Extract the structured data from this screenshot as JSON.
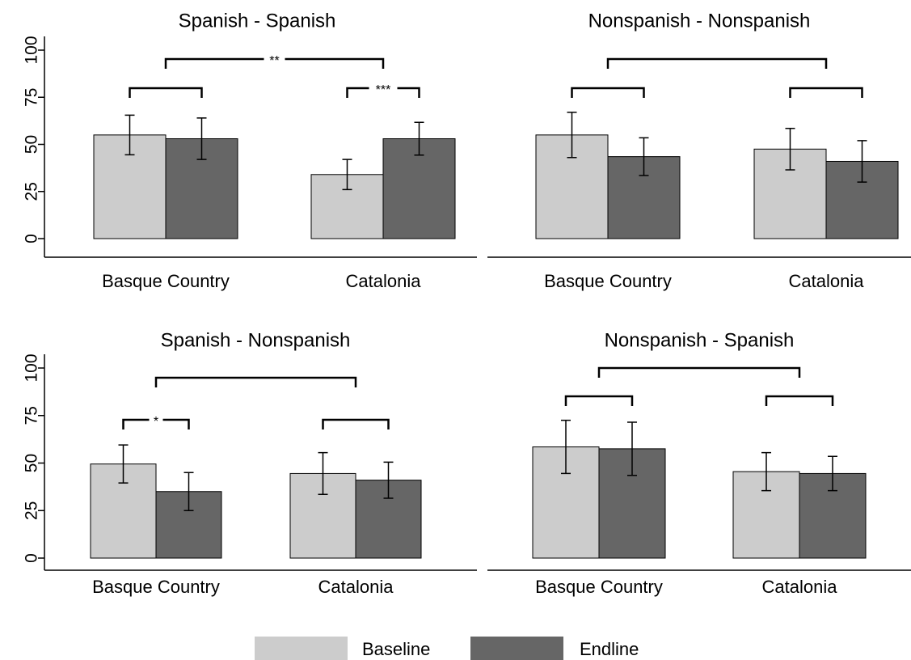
{
  "chart_data": [
    {
      "type": "bar",
      "title": "Spanish - Spanish",
      "categories": [
        "Basque Country",
        "Catalonia"
      ],
      "series": [
        {
          "name": "Baseline",
          "color": "#cccccc",
          "values": [
            55,
            34
          ],
          "errors": [
            10.5,
            8
          ]
        },
        {
          "name": "Endline",
          "color": "#666666",
          "values": [
            53,
            53
          ],
          "errors": [
            11,
            8.7
          ]
        }
      ],
      "ylim": [
        0,
        100
      ],
      "yticks": [
        0,
        25,
        50,
        75,
        100
      ],
      "significance": {
        "between": "**",
        "within": [
          null,
          "***"
        ]
      }
    },
    {
      "type": "bar",
      "title": "Nonspanish - Nonspanish",
      "categories": [
        "Basque Country",
        "Catalonia"
      ],
      "series": [
        {
          "name": "Baseline",
          "color": "#cccccc",
          "values": [
            55,
            47.5
          ],
          "errors": [
            12,
            11
          ]
        },
        {
          "name": "Endline",
          "color": "#666666",
          "values": [
            43.5,
            41
          ],
          "errors": [
            10,
            11
          ]
        }
      ],
      "ylim": [
        0,
        100
      ],
      "significance": {
        "between": null,
        "within": [
          null,
          null
        ]
      }
    },
    {
      "type": "bar",
      "title": "Spanish - Nonspanish",
      "categories": [
        "Basque Country",
        "Catalonia"
      ],
      "series": [
        {
          "name": "Baseline",
          "color": "#cccccc",
          "values": [
            49.5,
            44.5
          ],
          "errors": [
            10,
            11
          ]
        },
        {
          "name": "Endline",
          "color": "#666666",
          "values": [
            35,
            41
          ],
          "errors": [
            10,
            9.5
          ]
        }
      ],
      "ylim": [
        0,
        100
      ],
      "yticks": [
        0,
        25,
        50,
        75,
        100
      ],
      "significance": {
        "between": null,
        "within": [
          "*",
          null
        ]
      }
    },
    {
      "type": "bar",
      "title": "Nonspanish - Spanish",
      "categories": [
        "Basque Country",
        "Catalonia"
      ],
      "series": [
        {
          "name": "Baseline",
          "color": "#cccccc",
          "values": [
            58.5,
            45.5
          ],
          "errors": [
            14,
            10
          ]
        },
        {
          "name": "Endline",
          "color": "#666666",
          "values": [
            57.5,
            44.5
          ],
          "errors": [
            14,
            9
          ]
        }
      ],
      "ylim": [
        0,
        100
      ],
      "significance": {
        "between": null,
        "within": [
          null,
          null
        ]
      }
    }
  ]
}
